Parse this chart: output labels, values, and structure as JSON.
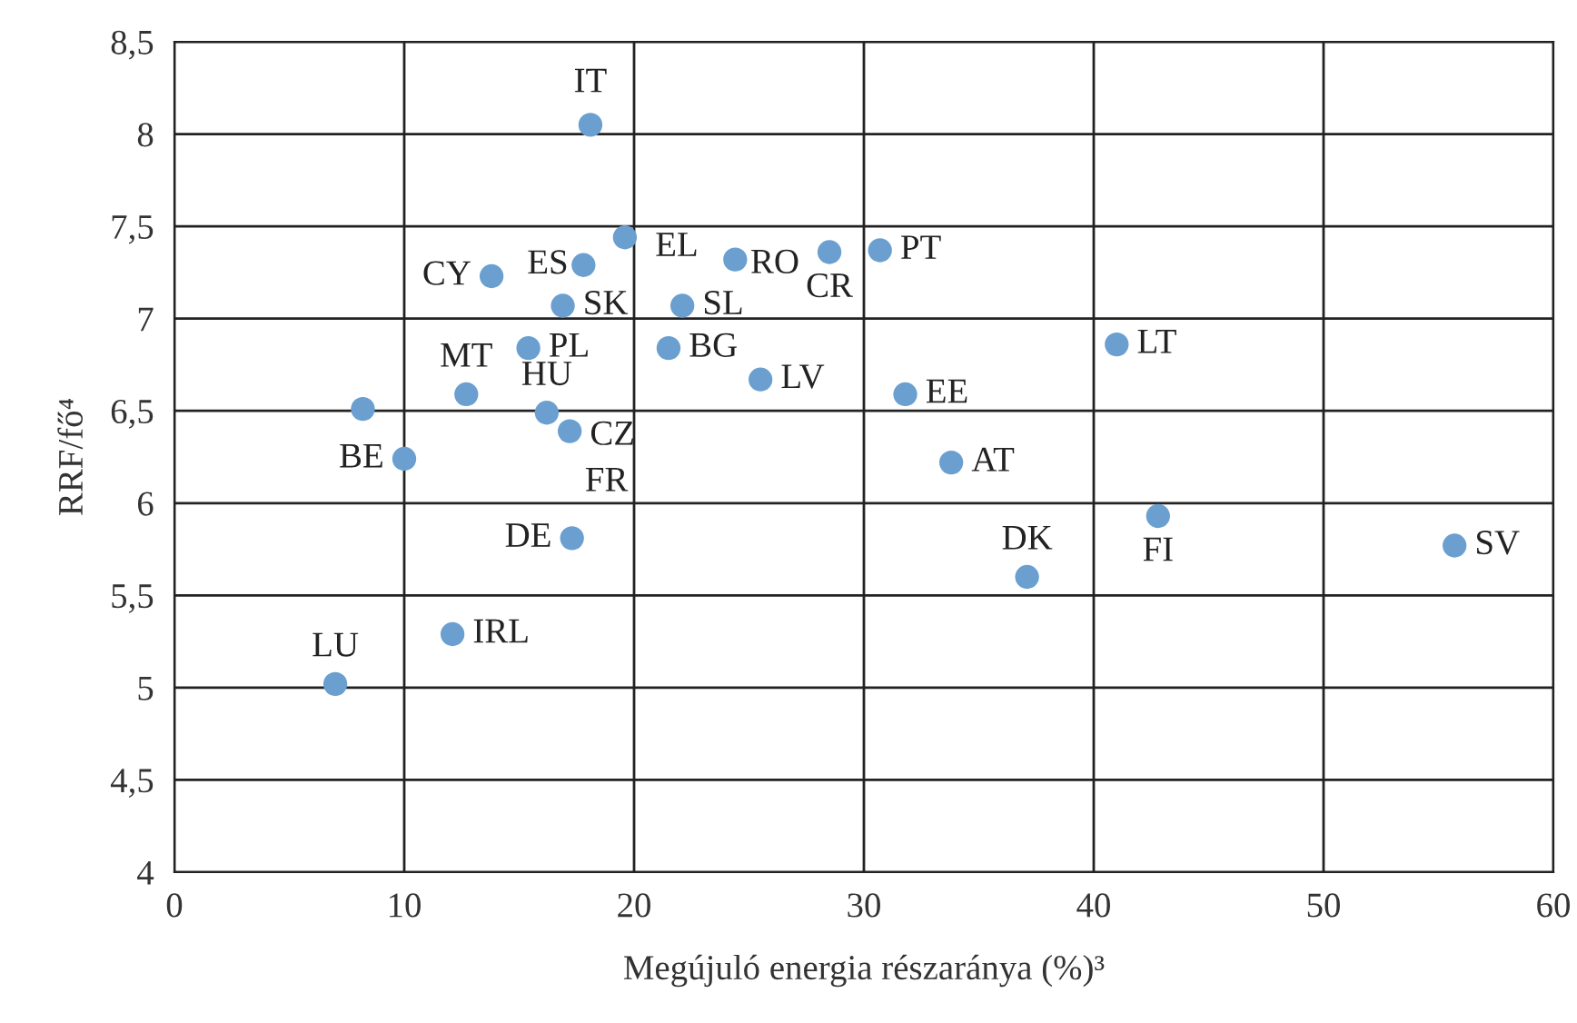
{
  "chart_data": {
    "type": "scatter",
    "xlabel": "Megújuló energia részaránya (%)³",
    "ylabel": "RRF/fő⁴",
    "series": [
      {
        "color": "#6a9fd0",
        "x": [
          18.1,
          19.6,
          17.8,
          13.8,
          16.9,
          24.4,
          28.5,
          30.7,
          22.1,
          15.4,
          21.5,
          25.5,
          31.8,
          12.7,
          8.2,
          16.2,
          17.2,
          10.0,
          33.8,
          17.3,
          41.0,
          42.8,
          55.7,
          37.1,
          12.1,
          7.0
        ],
        "values": [
          8.05,
          7.44,
          7.29,
          7.23,
          7.07,
          7.32,
          7.36,
          7.37,
          7.07,
          6.84,
          6.84,
          6.67,
          6.59,
          6.59,
          6.51,
          6.49,
          6.39,
          6.24,
          6.22,
          5.81,
          6.86,
          5.93,
          5.77,
          5.6,
          5.29,
          5.02
        ]
      }
    ],
    "annotations": [
      {
        "text": "IT",
        "x": 18.1,
        "y": 8.05
      },
      {
        "text": "EL",
        "x": 19.6,
        "y": 7.44
      },
      {
        "text": "ES",
        "x": 17.8,
        "y": 7.29
      },
      {
        "text": "CY",
        "x": 13.8,
        "y": 7.23
      },
      {
        "text": "SK",
        "x": 16.9,
        "y": 7.07
      },
      {
        "text": "RO",
        "x": 24.4,
        "y": 7.32
      },
      {
        "text": "CR",
        "x": 28.5,
        "y": 7.36
      },
      {
        "text": "PT",
        "x": 30.7,
        "y": 7.37
      },
      {
        "text": "SL",
        "x": 22.1,
        "y": 7.07
      },
      {
        "text": "PL",
        "x": 15.4,
        "y": 6.84
      },
      {
        "text": "BG",
        "x": 21.5,
        "y": 6.84
      },
      {
        "text": "LV",
        "x": 25.5,
        "y": 6.67
      },
      {
        "text": "EE",
        "x": 31.8,
        "y": 6.59
      },
      {
        "text": "MT",
        "x": 12.7,
        "y": 6.59
      },
      {
        "text": "HU",
        "x": 16.2,
        "y": 6.49
      },
      {
        "text": "CZ",
        "x": 17.2,
        "y": 6.39
      },
      {
        "text": "FR",
        "x": 17.2,
        "y": 6.39
      },
      {
        "text": "BE",
        "x": 10.0,
        "y": 6.24
      },
      {
        "text": "AT",
        "x": 33.8,
        "y": 6.22
      },
      {
        "text": "DE",
        "x": 17.3,
        "y": 5.81
      },
      {
        "text": "LT",
        "x": 41.0,
        "y": 6.86
      },
      {
        "text": "FI",
        "x": 42.8,
        "y": 5.93
      },
      {
        "text": "SV",
        "x": 55.7,
        "y": 5.77
      },
      {
        "text": "DK",
        "x": 37.1,
        "y": 5.6
      },
      {
        "text": "IRL",
        "x": 12.1,
        "y": 5.29
      },
      {
        "text": "LU",
        "x": 7.0,
        "y": 5.02
      }
    ],
    "xlim": [
      0,
      60
    ],
    "xticks": [
      0,
      10,
      20,
      30,
      40,
      50,
      60
    ],
    "ylim": [
      4,
      8.5
    ],
    "yticks": [
      {
        "value": 4,
        "label": "4"
      },
      {
        "value": 4.5,
        "label": "4,5"
      },
      {
        "value": 5,
        "label": "5"
      },
      {
        "value": 5.5,
        "label": "5,5"
      },
      {
        "value": 6,
        "label": "6"
      },
      {
        "value": 6.5,
        "label": "6,5"
      },
      {
        "value": 7,
        "label": "7"
      },
      {
        "value": 7.5,
        "label": "7,5"
      },
      {
        "value": 8,
        "label": "8"
      },
      {
        "value": 8.5,
        "label": "8,5"
      }
    ],
    "grid": true,
    "marker": "circle",
    "legend": false
  }
}
